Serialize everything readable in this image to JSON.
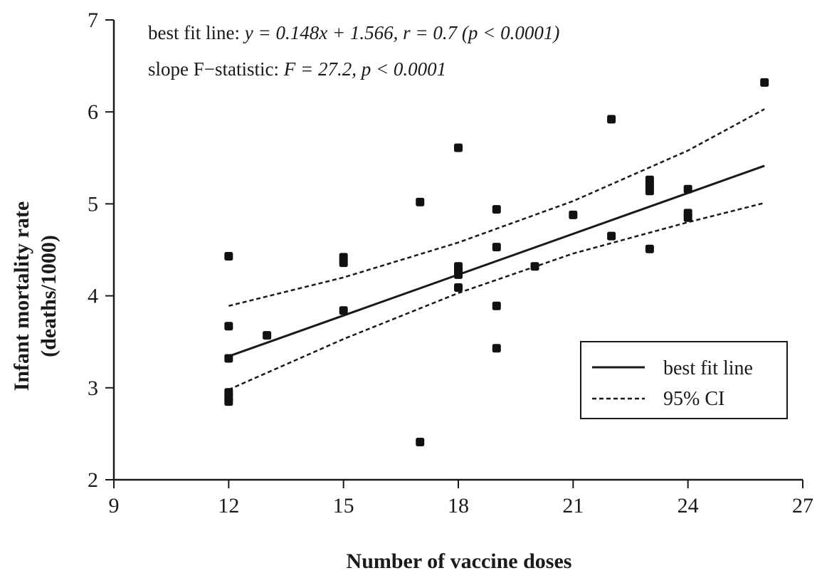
{
  "chart_data": {
    "type": "scatter",
    "xlabel": "Number of vaccine doses",
    "ylabel_lines": [
      "Infant mortality rate",
      "(deaths/1000)"
    ],
    "xlim": [
      9,
      27
    ],
    "ylim": [
      2,
      7
    ],
    "xticks": [
      9,
      12,
      15,
      18,
      21,
      24,
      27
    ],
    "yticks": [
      2,
      3,
      4,
      5,
      6,
      7
    ],
    "grid": false,
    "annotations": [
      {
        "prefix": "best fit line: ",
        "math": "y = 0.148x + 1.566, r = 0.7 (p < 0.0001)"
      },
      {
        "prefix": "slope F−statistic: ",
        "math": "F = 27.2, p < 0.0001"
      }
    ],
    "legend": {
      "position": "lower-right",
      "entries": [
        {
          "label": "best fit line",
          "style": "solid"
        },
        {
          "label": "95% CI",
          "style": "dashed"
        }
      ]
    },
    "points": [
      {
        "x": 12,
        "y": 4.43
      },
      {
        "x": 12,
        "y": 3.67
      },
      {
        "x": 12,
        "y": 3.32
      },
      {
        "x": 12,
        "y": 2.95
      },
      {
        "x": 12,
        "y": 2.9
      },
      {
        "x": 12,
        "y": 2.85
      },
      {
        "x": 13,
        "y": 3.57
      },
      {
        "x": 15,
        "y": 4.42
      },
      {
        "x": 15,
        "y": 4.36
      },
      {
        "x": 15,
        "y": 3.84
      },
      {
        "x": 17,
        "y": 5.02
      },
      {
        "x": 17,
        "y": 2.41
      },
      {
        "x": 18,
        "y": 5.61
      },
      {
        "x": 18,
        "y": 4.32
      },
      {
        "x": 18,
        "y": 4.27
      },
      {
        "x": 18,
        "y": 4.23
      },
      {
        "x": 18,
        "y": 4.09
      },
      {
        "x": 19,
        "y": 4.94
      },
      {
        "x": 19,
        "y": 4.53
      },
      {
        "x": 19,
        "y": 3.89
      },
      {
        "x": 19,
        "y": 3.43
      },
      {
        "x": 20,
        "y": 4.32
      },
      {
        "x": 21,
        "y": 4.88
      },
      {
        "x": 22,
        "y": 5.92
      },
      {
        "x": 22,
        "y": 4.65
      },
      {
        "x": 23,
        "y": 5.26
      },
      {
        "x": 23,
        "y": 5.2
      },
      {
        "x": 23,
        "y": 5.14
      },
      {
        "x": 23,
        "y": 4.51
      },
      {
        "x": 24,
        "y": 5.16
      },
      {
        "x": 24,
        "y": 4.9
      },
      {
        "x": 24,
        "y": 4.85
      },
      {
        "x": 26,
        "y": 6.32
      }
    ],
    "fit_line": {
      "slope": 0.148,
      "intercept": 1.566,
      "x_range": [
        12,
        26
      ]
    },
    "ci_upper": [
      {
        "x": 12,
        "y": 3.89
      },
      {
        "x": 15,
        "y": 4.2
      },
      {
        "x": 18,
        "y": 4.58
      },
      {
        "x": 21,
        "y": 5.03
      },
      {
        "x": 24,
        "y": 5.58
      },
      {
        "x": 26,
        "y": 6.03
      }
    ],
    "ci_lower": [
      {
        "x": 12,
        "y": 2.98
      },
      {
        "x": 15,
        "y": 3.53
      },
      {
        "x": 18,
        "y": 4.03
      },
      {
        "x": 21,
        "y": 4.46
      },
      {
        "x": 24,
        "y": 4.8
      },
      {
        "x": 26,
        "y": 5.01
      }
    ]
  }
}
